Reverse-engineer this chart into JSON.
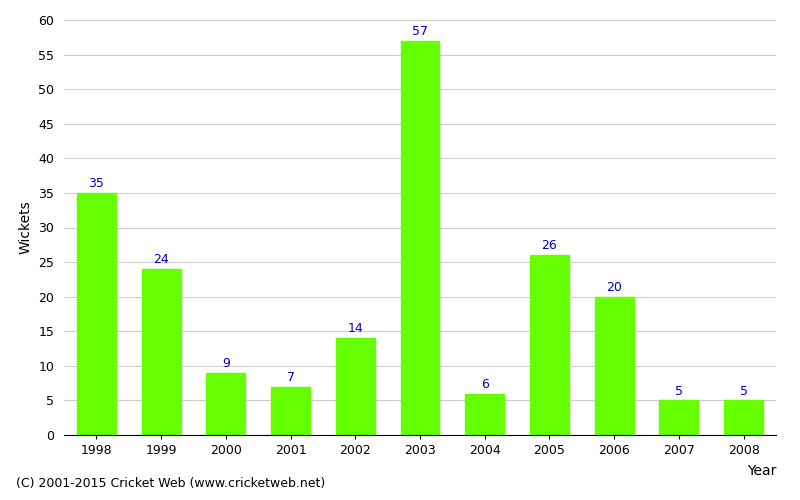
{
  "years": [
    "1998",
    "1999",
    "2000",
    "2001",
    "2002",
    "2003",
    "2004",
    "2005",
    "2006",
    "2007",
    "2008"
  ],
  "values": [
    35,
    24,
    9,
    7,
    14,
    57,
    6,
    26,
    20,
    5,
    5
  ],
  "bar_color": "#66ff00",
  "bar_edge_color": "#66ff00",
  "label_color": "#0000cc",
  "title": "",
  "xlabel": "Year",
  "ylabel": "Wickets",
  "ylim": [
    0,
    60
  ],
  "yticks": [
    0,
    5,
    10,
    15,
    20,
    25,
    30,
    35,
    40,
    45,
    50,
    55,
    60
  ],
  "grid_color": "#cccccc",
  "background_color": "#ffffff",
  "footer": "(C) 2001-2015 Cricket Web (www.cricketweb.net)",
  "label_fontsize": 9,
  "axis_label_fontsize": 10,
  "tick_fontsize": 9,
  "footer_fontsize": 9
}
